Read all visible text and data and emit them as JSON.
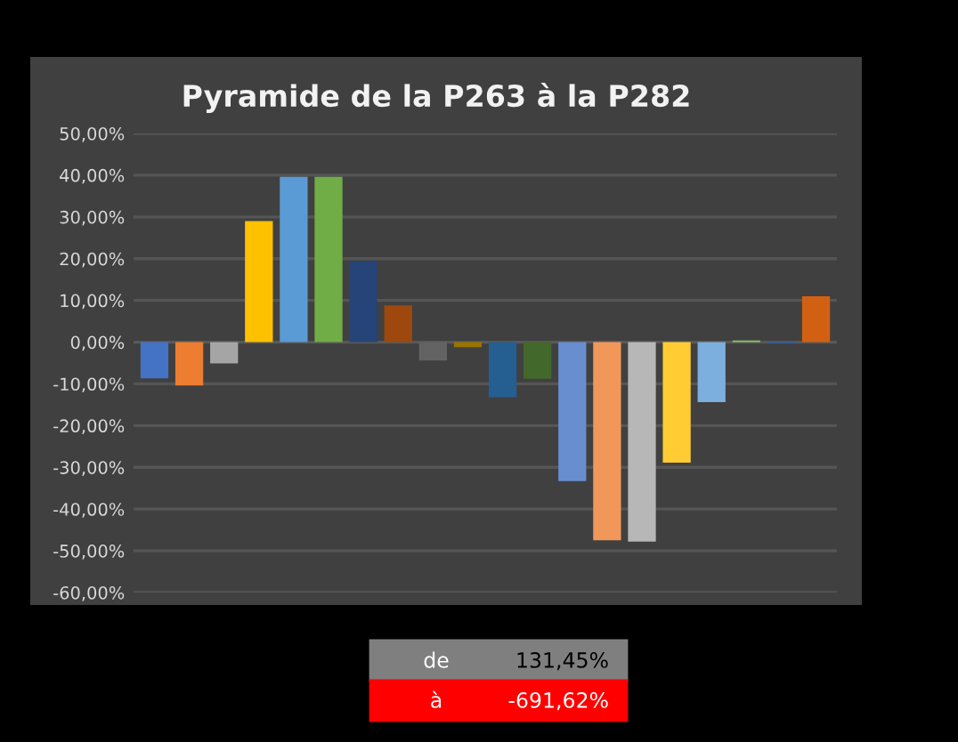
{
  "chart_data": {
    "type": "bar",
    "title": "Pyramide de la P263 à la P282",
    "categories": [
      null,
      null,
      null,
      null,
      null,
      null,
      null,
      null,
      null,
      null,
      null,
      null,
      null,
      null,
      null,
      null,
      null,
      null,
      null,
      null
    ],
    "values": [
      -8.7,
      -10.4,
      -5.1,
      29.0,
      39.6,
      39.6,
      19.4,
      8.8,
      -4.4,
      -1.2,
      -13.2,
      -8.8,
      -33.3,
      -47.5,
      -47.8,
      -28.9,
      -14.4,
      0.4,
      -0.3,
      11.0
    ],
    "colors": [
      "#4472c4",
      "#ed7d31",
      "#a5a5a5",
      "#ffc000",
      "#5b9bd5",
      "#70ad47",
      "#264478",
      "#9e480e",
      "#636363",
      "#997300",
      "#255e91",
      "#43682b",
      "#698ed0",
      "#f1975a",
      "#b7b7b7",
      "#ffcd33",
      "#7cafdd",
      "#8cc168",
      "#335aa1",
      "#d26012"
    ],
    "ylim": [
      -60,
      50
    ],
    "yticks": [
      {
        "value": -60,
        "label": "-60,00%"
      },
      {
        "value": -50,
        "label": "-50,00%"
      },
      {
        "value": -40,
        "label": "-40,00%"
      },
      {
        "value": -30,
        "label": "-30,00%"
      },
      {
        "value": -20,
        "label": "-20,00%"
      },
      {
        "value": -10,
        "label": "-10,00%"
      },
      {
        "value": 0,
        "label": "0,00%"
      },
      {
        "value": 10,
        "label": "10,00%"
      },
      {
        "value": 20,
        "label": "20,00%"
      },
      {
        "value": 30,
        "label": "30,00%"
      },
      {
        "value": 40,
        "label": "40,00%"
      },
      {
        "value": 50,
        "label": "50,00%"
      }
    ],
    "grid": "y",
    "tick_labels": "y",
    "annotations": [
      "de",
      "131,45%",
      "à",
      "-691,62%"
    ]
  }
}
